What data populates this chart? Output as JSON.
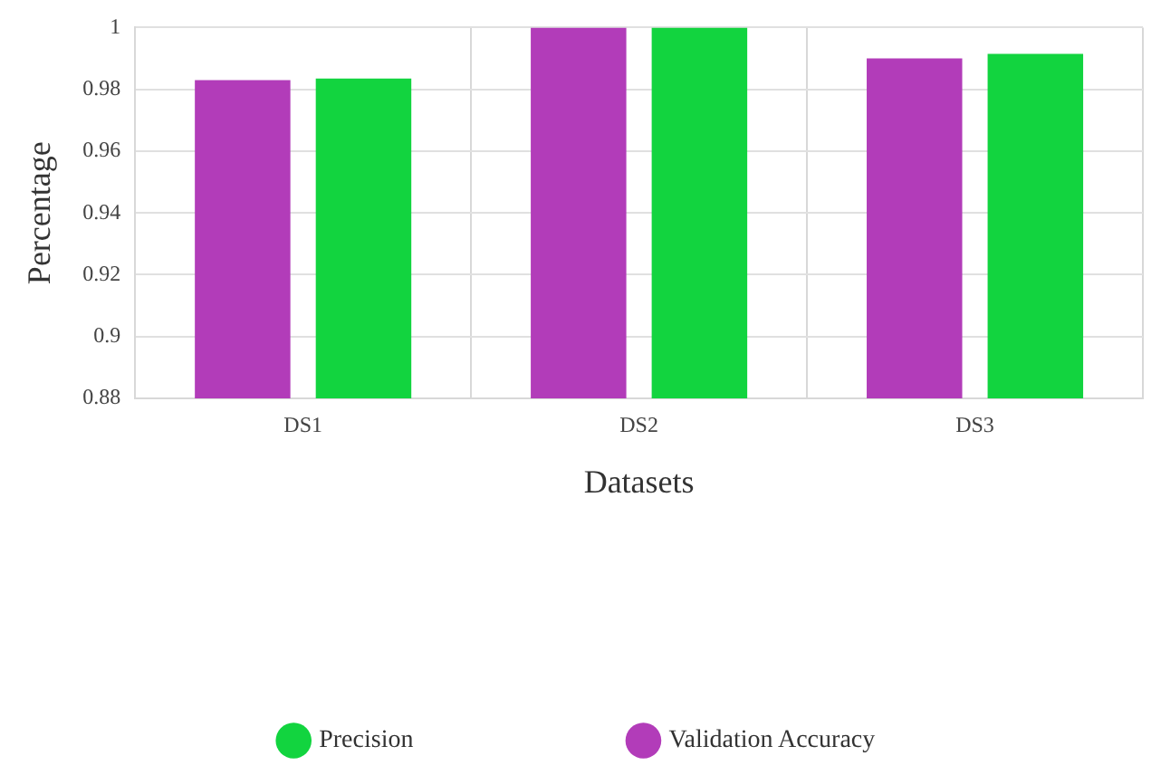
{
  "chart_data": {
    "type": "bar",
    "xlabel": "Datasets",
    "ylabel": "Percentage",
    "categories": [
      "DS1",
      "DS2",
      "DS3"
    ],
    "series": [
      {
        "name": "Validation Accuracy",
        "color": "#b23cb9",
        "values": [
          0.983,
          1.0,
          0.99
        ]
      },
      {
        "name": "Precision",
        "color": "#12d43f",
        "values": [
          0.9835,
          1.0,
          0.9915
        ]
      }
    ],
    "ylim": [
      0.88,
      1
    ],
    "yticks": [
      0.88,
      0.9,
      0.92,
      0.94,
      0.96,
      0.98,
      1
    ],
    "grid": true,
    "legend": "bottom"
  }
}
